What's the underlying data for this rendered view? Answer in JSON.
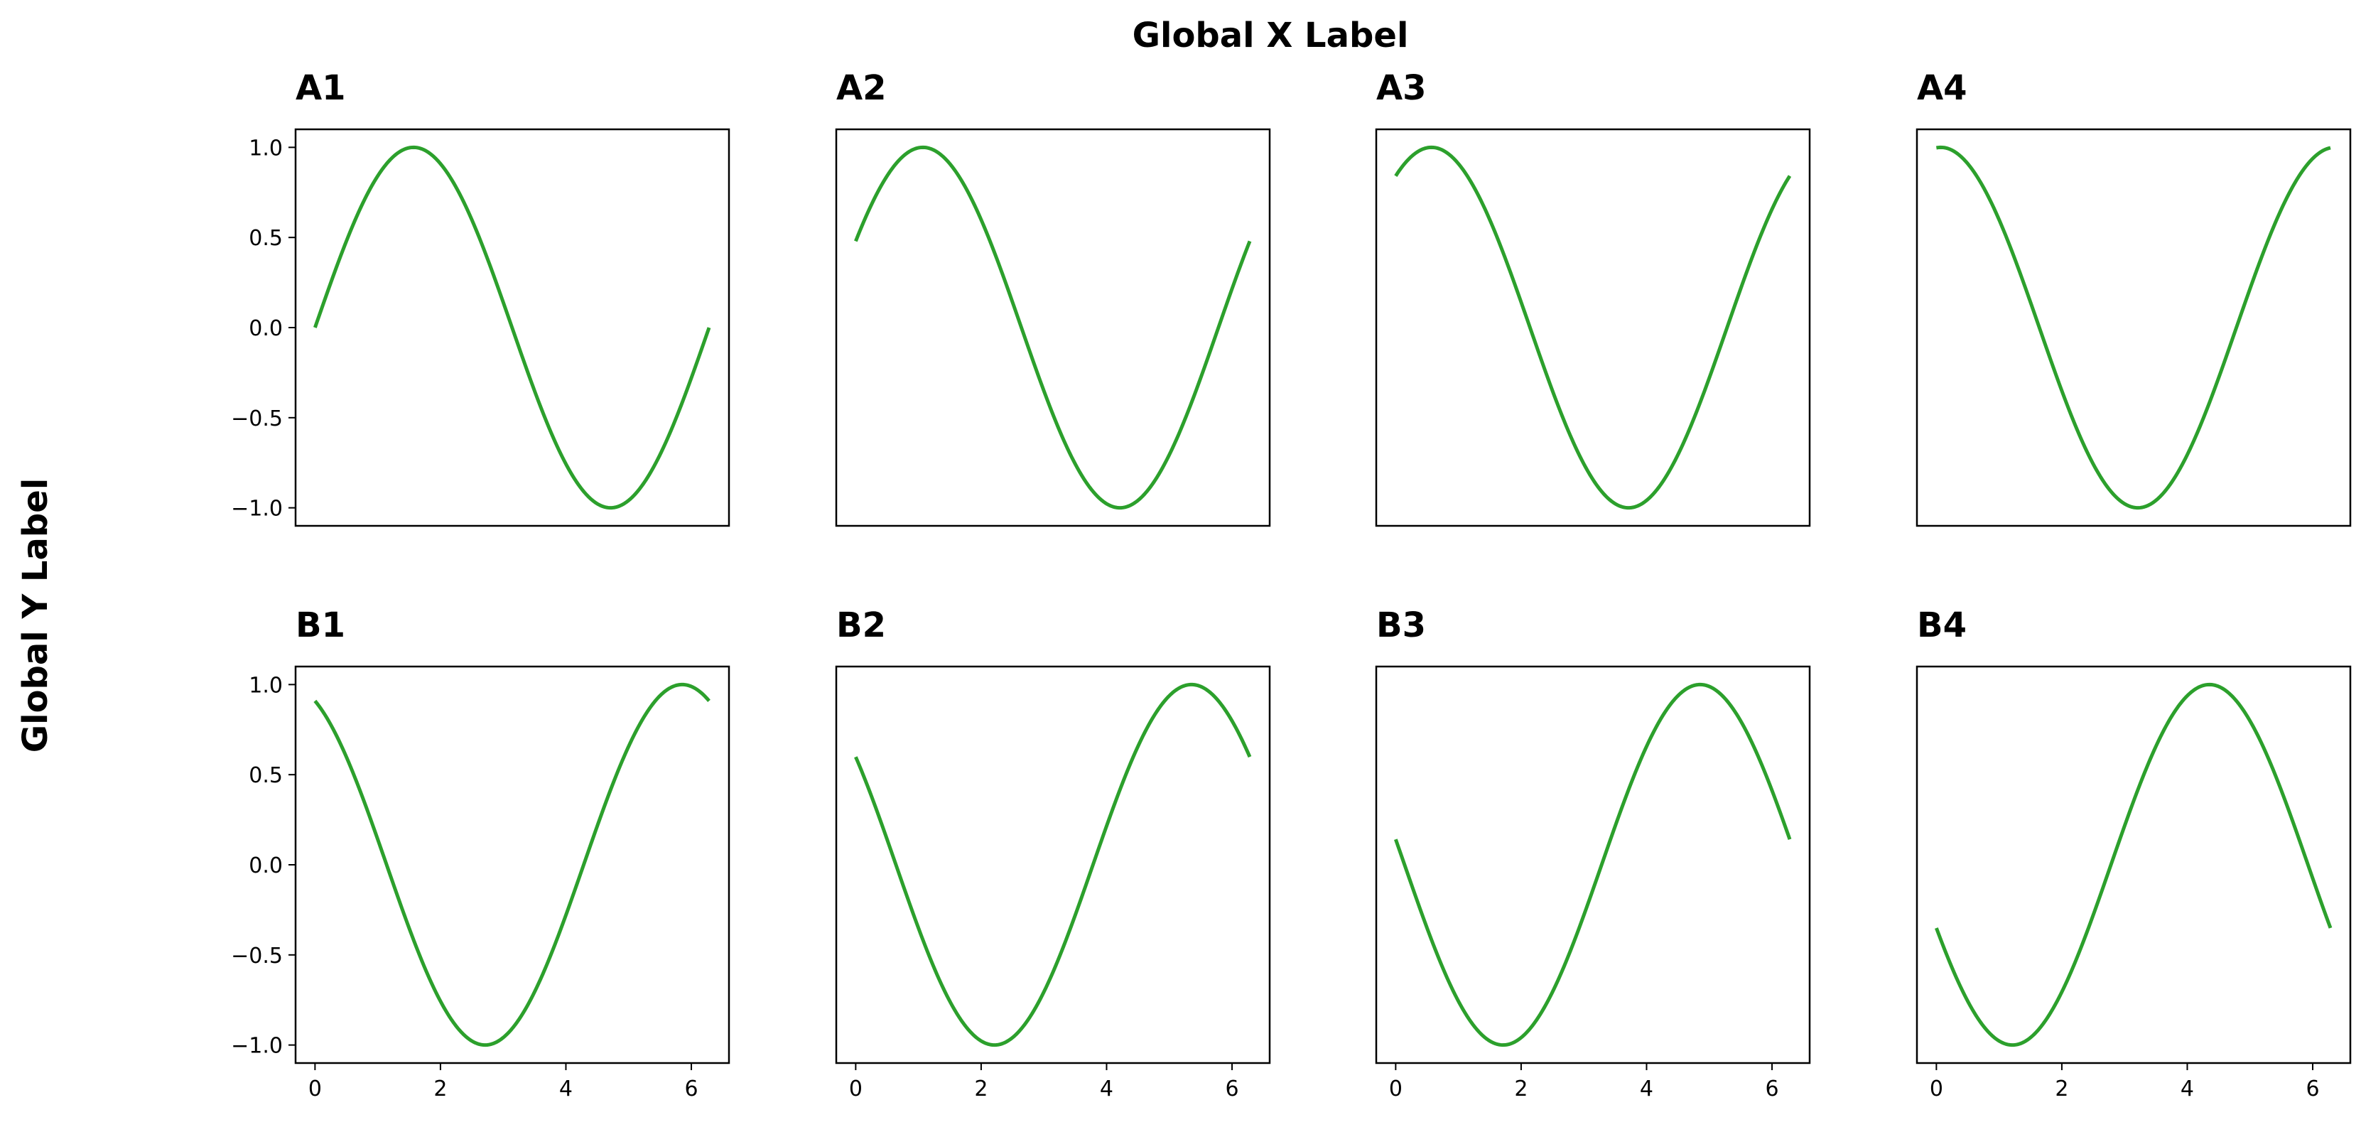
{
  "figure": {
    "suptitle": "Global X Label",
    "y_label": "Global Y Label",
    "line_color": "#2ca02c"
  },
  "chart_data": [
    {
      "type": "line",
      "title": "A1",
      "xlim": [
        -0.31,
        6.6
      ],
      "ylim": [
        -1.1,
        1.1
      ],
      "x_ticks": [],
      "y_ticks": [
        1.0,
        0.5,
        0.0,
        -0.5,
        -1.0
      ],
      "y_tick_labels": [
        "1.0",
        "0.5",
        "0.0",
        "−0.5",
        "−1.0"
      ],
      "x_range": [
        0,
        6.283
      ],
      "phase": 0.0,
      "points": 200
    },
    {
      "type": "line",
      "title": "A2",
      "xlim": [
        -0.31,
        6.6
      ],
      "ylim": [
        -1.1,
        1.1
      ],
      "x_ticks": [],
      "y_ticks": [],
      "y_tick_labels": [],
      "x_range": [
        0,
        6.283
      ],
      "phase": 0.5,
      "points": 200
    },
    {
      "type": "line",
      "title": "A3",
      "xlim": [
        -0.31,
        6.6
      ],
      "ylim": [
        -1.1,
        1.1
      ],
      "x_ticks": [],
      "y_ticks": [],
      "y_tick_labels": [],
      "x_range": [
        0,
        6.283
      ],
      "phase": 1.0,
      "points": 200
    },
    {
      "type": "line",
      "title": "A4",
      "xlim": [
        -0.31,
        6.6
      ],
      "ylim": [
        -1.1,
        1.1
      ],
      "x_ticks": [],
      "y_ticks": [],
      "y_tick_labels": [],
      "x_range": [
        0,
        6.283
      ],
      "phase": 1.5,
      "points": 200
    },
    {
      "type": "line",
      "title": "B1",
      "xlim": [
        -0.31,
        6.6
      ],
      "ylim": [
        -1.1,
        1.1
      ],
      "x_ticks": [
        0,
        2,
        4,
        6
      ],
      "x_tick_labels": [
        "0",
        "2",
        "4",
        "6"
      ],
      "y_ticks": [
        1.0,
        0.5,
        0.0,
        -0.5,
        -1.0
      ],
      "y_tick_labels": [
        "1.0",
        "0.5",
        "0.0",
        "−0.5",
        "−1.0"
      ],
      "x_range": [
        0,
        6.283
      ],
      "phase": 2.0,
      "points": 200
    },
    {
      "type": "line",
      "title": "B2",
      "xlim": [
        -0.31,
        6.6
      ],
      "ylim": [
        -1.1,
        1.1
      ],
      "x_ticks": [
        0,
        2,
        4,
        6
      ],
      "x_tick_labels": [
        "0",
        "2",
        "4",
        "6"
      ],
      "y_ticks": [],
      "y_tick_labels": [],
      "x_range": [
        0,
        6.283
      ],
      "phase": 2.5,
      "points": 200
    },
    {
      "type": "line",
      "title": "B3",
      "xlim": [
        -0.31,
        6.6
      ],
      "ylim": [
        -1.1,
        1.1
      ],
      "x_ticks": [
        0,
        2,
        4,
        6
      ],
      "x_tick_labels": [
        "0",
        "2",
        "4",
        "6"
      ],
      "y_ticks": [],
      "y_tick_labels": [],
      "x_range": [
        0,
        6.283
      ],
      "phase": 3.0,
      "points": 200
    },
    {
      "type": "line",
      "title": "B4",
      "xlim": [
        -0.31,
        6.6
      ],
      "ylim": [
        -1.1,
        1.1
      ],
      "x_ticks": [
        0,
        2,
        4,
        6
      ],
      "x_tick_labels": [
        "0",
        "2",
        "4",
        "6"
      ],
      "y_ticks": [],
      "y_tick_labels": [],
      "x_range": [
        0,
        6.283
      ],
      "phase": 3.5,
      "points": 200
    }
  ]
}
